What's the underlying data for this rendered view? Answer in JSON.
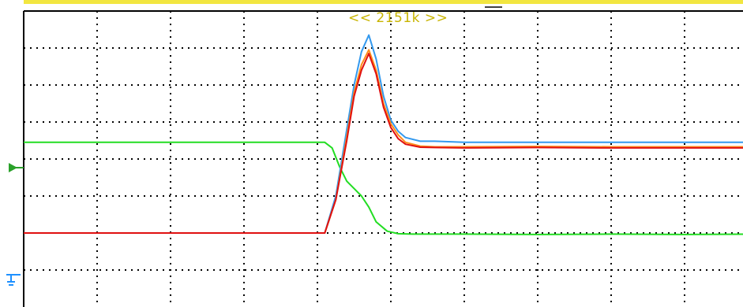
{
  "header": {
    "trigger_position_text": "<< 2151k >>"
  },
  "colors": {
    "background": "#ffffff",
    "grid": "#000000",
    "top_bar": "#f2e640",
    "trigger_text": "#c8b400",
    "ground_marker": "#1e90ff",
    "trigger_marker": "#2aa12a"
  },
  "chart_data": {
    "type": "line",
    "title": "",
    "xlabel": "",
    "ylabel": "",
    "grid": true,
    "legend": "none",
    "xlim": [
      0,
      10
    ],
    "ylim": [
      0,
      8
    ],
    "x_divisions": 10,
    "y_divisions": 8,
    "series": [
      {
        "color": "#22dd22",
        "x": [
          0,
          4.1,
          4.2,
          4.3,
          4.4,
          4.5,
          4.6,
          4.7,
          4.8,
          4.95,
          5.1,
          5.3,
          6,
          7,
          8,
          9,
          10
        ],
        "y": [
          4.45,
          4.45,
          4.3,
          3.8,
          3.4,
          3.2,
          3.0,
          2.7,
          2.3,
          2.05,
          1.98,
          1.97,
          1.97,
          1.96,
          1.97,
          1.96,
          1.97
        ]
      },
      {
        "color": "#3399ee",
        "x": [
          0,
          4.1,
          4.25,
          4.4,
          4.5,
          4.6,
          4.7,
          4.8,
          4.9,
          5.0,
          5.1,
          5.2,
          5.4,
          5.6,
          6,
          7,
          8,
          9,
          10
        ],
        "y": [
          2.0,
          2.0,
          3.0,
          4.8,
          6.0,
          6.9,
          7.35,
          6.7,
          5.7,
          5.05,
          4.75,
          4.58,
          4.48,
          4.48,
          4.45,
          4.45,
          4.45,
          4.45,
          4.45
        ]
      },
      {
        "color": "#ff8c1a",
        "x": [
          0,
          4.1,
          4.25,
          4.4,
          4.5,
          4.6,
          4.7,
          4.8,
          4.9,
          5.0,
          5.1,
          5.2,
          5.4,
          5.6,
          6,
          7,
          8,
          9,
          10
        ],
        "y": [
          2.0,
          2.0,
          2.9,
          4.6,
          5.8,
          6.55,
          6.95,
          6.4,
          5.5,
          4.95,
          4.65,
          4.45,
          4.35,
          4.33,
          4.33,
          4.34,
          4.33,
          4.33,
          4.33
        ]
      },
      {
        "color": "#e01010",
        "x": [
          0,
          4.1,
          4.25,
          4.4,
          4.5,
          4.6,
          4.7,
          4.8,
          4.9,
          5.0,
          5.1,
          5.2,
          5.4,
          5.6,
          6,
          7,
          8,
          9,
          10
        ],
        "y": [
          2.0,
          2.0,
          2.9,
          4.5,
          5.7,
          6.4,
          6.85,
          6.3,
          5.4,
          4.85,
          4.55,
          4.4,
          4.32,
          4.31,
          4.3,
          4.31,
          4.3,
          4.3,
          4.3
        ]
      }
    ]
  }
}
